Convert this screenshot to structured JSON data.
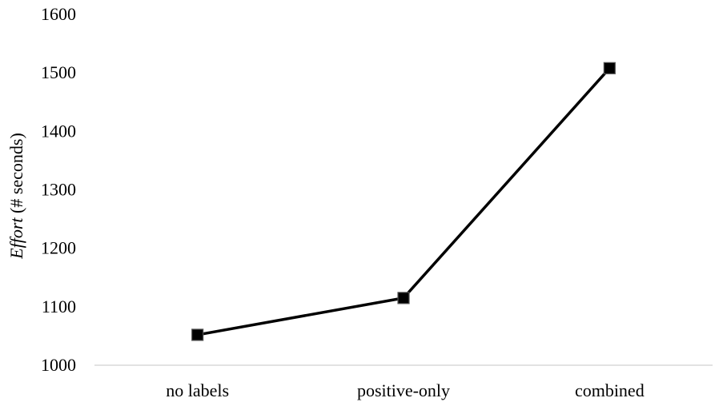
{
  "chart_data": {
    "type": "line",
    "categories": [
      "no labels",
      "positive-only",
      "combined"
    ],
    "series": [
      {
        "values": [
          1052,
          1115,
          1508
        ]
      }
    ],
    "ylabel_italic": "Effort",
    "ylabel_rest": " (# seconds)",
    "ylim": [
      1000,
      1600
    ],
    "yticks": [
      "1000",
      "1100",
      "1200",
      "1300",
      "1400",
      "1500",
      "1600"
    ],
    "grid": false,
    "legend": "none",
    "line_color": "#000000",
    "marker": "square"
  }
}
